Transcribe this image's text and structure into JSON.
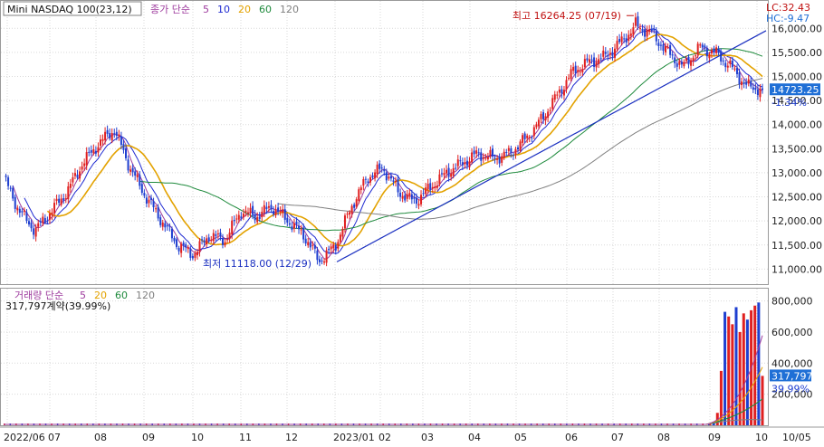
{
  "header": {
    "symbol": "Mini NASDAQ 100(23,12)",
    "indicator_prefix": "종가 단순",
    "ma_periods": [
      "5",
      "10",
      "20",
      "60",
      "120"
    ],
    "ma_colors": [
      "#9e3c9e",
      "#1f2ad1",
      "#e3a200",
      "#1e8a3c",
      "#808080"
    ]
  },
  "right_info": {
    "lc": "LC:32.43",
    "hc": "HC:-9.47"
  },
  "price_labels": {
    "current": "14723.25",
    "change": "-1.34%"
  },
  "annotations": {
    "high": "최고 16264.25 (07/19)",
    "low": "최저 11118.00 (12/29)"
  },
  "volume_panel": {
    "title": "거래량 단순",
    "ma_periods": [
      "5",
      "20",
      "60",
      "120"
    ],
    "ma_colors": [
      "#9e3c9e",
      "#e3a200",
      "#1e8a3c",
      "#808080"
    ],
    "summary": "317,797계약(39.99%)",
    "current_label": "317,797",
    "percent_label": "39.99%"
  },
  "colors": {
    "up": "#e02020",
    "down": "#1f3fd0",
    "grid": "#d9d9d9",
    "trendline": "#1a2fc0",
    "label_bg": "#1f6fd6"
  },
  "chart_data": [
    {
      "type": "candlestick",
      "title": "Mini NASDAQ 100(23,12)",
      "x_axis_labels": [
        "2022/06",
        "07",
        "08",
        "09",
        "10",
        "11",
        "12",
        "2023/01",
        "02",
        "03",
        "04",
        "05",
        "06",
        "07",
        "08",
        "09",
        "10",
        "10/05"
      ],
      "y_ticks": [
        11000,
        11500,
        12000,
        12500,
        13000,
        13500,
        14000,
        14500,
        15000,
        15500,
        16000
      ],
      "y_tick_labels": [
        "11,000.00",
        "11,500.00",
        "12,000.00",
        "12,500.00",
        "13,000.00",
        "13,500.00",
        "14,000.00",
        "14,500.00",
        "15,000.00",
        "15,500.00",
        "16,000.00"
      ],
      "ylim": [
        10800,
        16400
      ],
      "approx_close_path": [
        {
          "x": "2022/06",
          "y": 12900
        },
        {
          "x": "06 mid",
          "y": 12200
        },
        {
          "x": "06 end",
          "y": 11800
        },
        {
          "x": "07",
          "y": 12200
        },
        {
          "x": "07 mid",
          "y": 12600
        },
        {
          "x": "07 end",
          "y": 13200
        },
        {
          "x": "08",
          "y": 13600
        },
        {
          "x": "08 mid",
          "y": 13900
        },
        {
          "x": "08 end",
          "y": 13100
        },
        {
          "x": "09",
          "y": 12500
        },
        {
          "x": "09 mid",
          "y": 12000
        },
        {
          "x": "09 end",
          "y": 11500
        },
        {
          "x": "10",
          "y": 11300
        },
        {
          "x": "10 mid",
          "y": 11700
        },
        {
          "x": "10 end",
          "y": 11600
        },
        {
          "x": "11",
          "y": 12200
        },
        {
          "x": "11 mid",
          "y": 12100
        },
        {
          "x": "11 end",
          "y": 12300
        },
        {
          "x": "12",
          "y": 12000
        },
        {
          "x": "12 mid",
          "y": 11700
        },
        {
          "x": "12 end",
          "y": 11150
        },
        {
          "x": "2023/01",
          "y": 11500
        },
        {
          "x": "01 mid",
          "y": 12300
        },
        {
          "x": "01 end",
          "y": 12900
        },
        {
          "x": "02",
          "y": 13100
        },
        {
          "x": "02 mid",
          "y": 12600
        },
        {
          "x": "02 end",
          "y": 12400
        },
        {
          "x": "03",
          "y": 12700
        },
        {
          "x": "03 mid",
          "y": 13000
        },
        {
          "x": "03 end",
          "y": 13200
        },
        {
          "x": "04",
          "y": 13400
        },
        {
          "x": "04 mid",
          "y": 13300
        },
        {
          "x": "04 end",
          "y": 13400
        },
        {
          "x": "05",
          "y": 13700
        },
        {
          "x": "05 mid",
          "y": 14100
        },
        {
          "x": "05 end",
          "y": 14600
        },
        {
          "x": "06",
          "y": 15100
        },
        {
          "x": "06 mid",
          "y": 15300
        },
        {
          "x": "06 end",
          "y": 15400
        },
        {
          "x": "07",
          "y": 15700
        },
        {
          "x": "07 mid",
          "y": 16050
        },
        {
          "x": "07 end",
          "y": 15900
        },
        {
          "x": "08",
          "y": 15500
        },
        {
          "x": "08 mid",
          "y": 15200
        },
        {
          "x": "08 end",
          "y": 15600
        },
        {
          "x": "09",
          "y": 15500
        },
        {
          "x": "09 mid",
          "y": 15200
        },
        {
          "x": "09 end",
          "y": 14800
        },
        {
          "x": "10",
          "y": 14723
        }
      ],
      "high": {
        "value": 16264.25,
        "date": "07/19"
      },
      "low": {
        "value": 11118.0,
        "date": "12/29"
      },
      "last": 14723.25,
      "change_pct": -1.34,
      "moving_averages": [
        5,
        10,
        20,
        60,
        120
      ],
      "grid": true
    },
    {
      "type": "bar",
      "title": "거래량",
      "y_ticks": [
        200000,
        400000,
        600000,
        800000
      ],
      "y_tick_labels": [
        "200,000",
        "400,000",
        "600,000",
        "800,000"
      ],
      "ylim": [
        0,
        850000
      ],
      "note": "volume near zero until 2023/09, then large bars",
      "approx_late_values": [
        10000,
        20000,
        80000,
        350000,
        730000,
        700000,
        650000,
        760000,
        600000,
        720000,
        680000,
        740000,
        770000,
        790000,
        317797
      ],
      "last": 317797,
      "last_pct": 39.99,
      "moving_averages": [
        5,
        20,
        60,
        120
      ],
      "grid": true
    }
  ]
}
